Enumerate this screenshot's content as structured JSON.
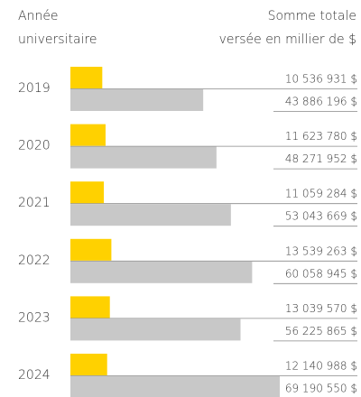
{
  "chart_data": {
    "type": "bar",
    "category_header": [
      "Année",
      "universitaire"
    ],
    "value_header": [
      "Somme totale",
      "versée en millier de $"
    ],
    "categories": [
      "2019",
      "2020",
      "2021",
      "2022",
      "2023",
      "2024"
    ],
    "series": [
      {
        "color": "#ffd100",
        "values": [
          10536931,
          11623780,
          11059284,
          13539263,
          13039570,
          12140988
        ],
        "value_labels": [
          "10 536 931 $",
          "11 623 780 $",
          "11 059 284 $",
          "13 539 263 $",
          "13 039 570 $",
          "12 140 988 $"
        ]
      },
      {
        "color": "#c8c8c8",
        "values": [
          43886196,
          48271952,
          53043669,
          60058945,
          56225865,
          69190550
        ],
        "value_labels": [
          "43 886 196 $",
          "48 271 952 $",
          "53 043 669 $",
          "60 058 945 $",
          "56 225 865 $",
          "69 190 550 $"
        ]
      }
    ]
  }
}
